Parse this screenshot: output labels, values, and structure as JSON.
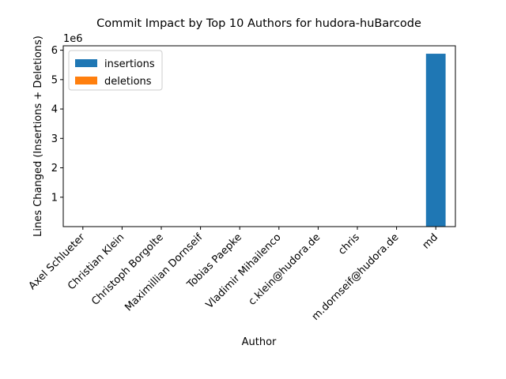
{
  "chart_data": {
    "type": "bar",
    "stacked": true,
    "title": "Commit Impact by Top 10 Authors for hudora-huBarcode",
    "xlabel": "Author",
    "ylabel": "Lines Changed (Insertions + Deletions)",
    "y_offset_text": "1e6",
    "categories": [
      "Axel Schlueter",
      "Christian Klein",
      "Christoph Borgolte",
      "Maximillian Dornseif",
      "Tobias Paepke",
      "Vladimir Mihailenco",
      "c.klein@hudora.de",
      "chris",
      "m.dornseif@hudora.de",
      "md"
    ],
    "series": [
      {
        "name": "insertions",
        "color": "#1f77b4",
        "values": [
          0,
          0,
          0,
          0,
          0,
          0,
          0,
          0,
          0,
          5880000
        ]
      },
      {
        "name": "deletions",
        "color": "#ff7f0e",
        "values": [
          0,
          0,
          0,
          0,
          0,
          0,
          0,
          0,
          0,
          0
        ]
      }
    ],
    "ylim": [
      0,
      6150000
    ],
    "yticks": [
      1000000,
      2000000,
      3000000,
      4000000,
      5000000,
      6000000
    ],
    "ytick_labels": [
      "1",
      "2",
      "3",
      "4",
      "5",
      "6"
    ],
    "grid": false,
    "legend_position": "top-left"
  }
}
